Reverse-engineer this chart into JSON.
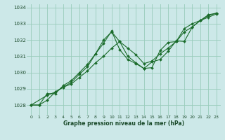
{
  "title": "Graphe pression niveau de la mer (hPa)",
  "background_color": "#cce8e8",
  "grid_color": "#99ccbb",
  "line_color": "#1a6b2a",
  "xlim": [
    -0.5,
    23.5
  ],
  "ylim": [
    1027.4,
    1034.2
  ],
  "yticks": [
    1028,
    1029,
    1030,
    1031,
    1032,
    1033,
    1034
  ],
  "xticks": [
    0,
    1,
    2,
    3,
    4,
    5,
    6,
    7,
    8,
    9,
    10,
    11,
    12,
    13,
    14,
    15,
    16,
    17,
    18,
    19,
    20,
    21,
    22,
    23
  ],
  "series": [
    {
      "x": [
        0,
        1,
        2,
        3,
        4,
        5,
        6,
        7,
        8,
        9,
        10,
        11,
        12,
        13,
        14,
        15,
        16,
        17,
        18,
        19,
        20,
        21,
        22,
        23
      ],
      "y": [
        1028.0,
        1028.0,
        1028.7,
        1028.7,
        1029.2,
        1029.5,
        1030.0,
        1030.5,
        1031.15,
        1032.0,
        1032.5,
        1031.9,
        1031.0,
        1030.6,
        1030.25,
        1030.3,
        1031.35,
        1031.85,
        1031.9,
        1032.7,
        1033.0,
        1033.2,
        1033.4,
        1033.6
      ]
    },
    {
      "x": [
        0,
        1,
        2,
        3,
        4,
        5,
        6,
        7,
        8,
        9,
        10,
        11,
        12,
        13,
        14,
        15,
        16,
        17,
        18,
        19,
        20,
        21,
        22,
        23
      ],
      "y": [
        1028.0,
        1028.0,
        1028.3,
        1028.8,
        1029.1,
        1029.3,
        1029.7,
        1030.1,
        1030.6,
        1031.0,
        1031.5,
        1031.9,
        1031.5,
        1031.1,
        1030.55,
        1030.7,
        1031.15,
        1031.5,
        1031.9,
        1032.5,
        1032.8,
        1033.2,
        1033.5,
        1033.65
      ]
    },
    {
      "x": [
        0,
        2,
        3,
        4,
        5,
        6,
        7,
        8,
        9,
        10,
        11,
        12,
        13,
        14,
        15,
        16,
        17,
        18,
        19,
        20,
        21,
        22,
        23
      ],
      "y": [
        1028.0,
        1028.6,
        1028.8,
        1029.1,
        1029.4,
        1029.9,
        1030.35,
        1031.15,
        1031.8,
        1032.55,
        1031.4,
        1030.8,
        1030.55,
        1030.25,
        1030.65,
        1030.8,
        1031.3,
        1031.95,
        1031.9,
        1032.8,
        1033.2,
        1033.55,
        1033.65
      ]
    }
  ]
}
